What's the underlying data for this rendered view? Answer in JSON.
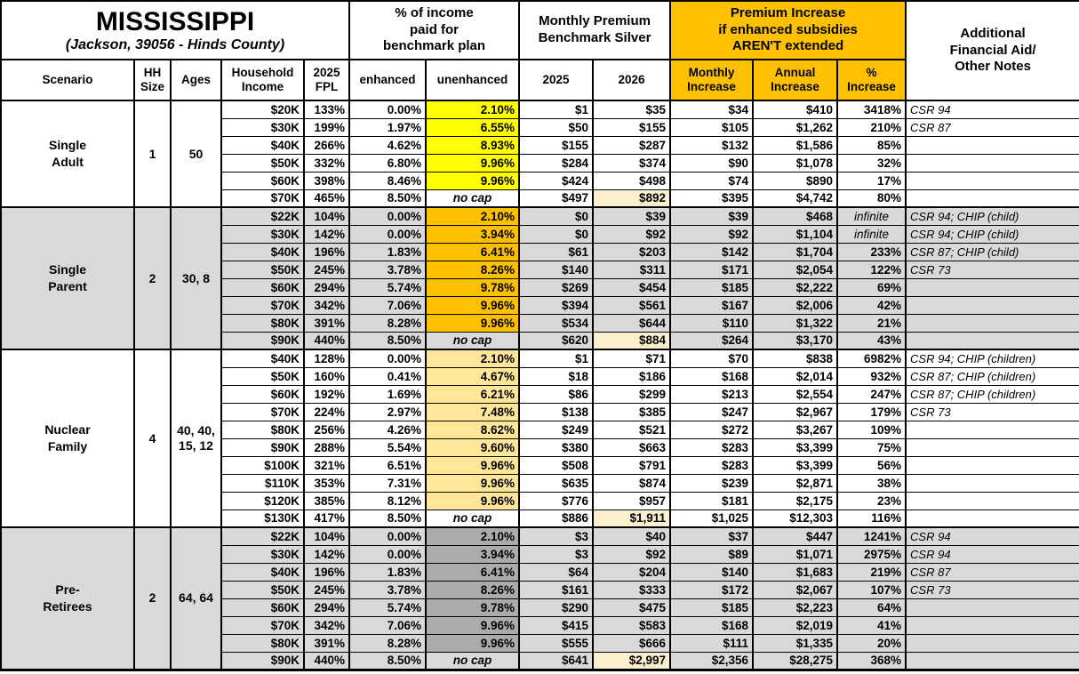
{
  "colors": {
    "header_orange": "#FFC000",
    "single_adult_unenhanced": "#FFFF00",
    "single_parent_unenhanced": "#FFC000",
    "nuclear_family_unenhanced": "#FFE699",
    "pre_retirees_unenhanced": "#ABABAB",
    "gray_section_bg": "#D9D9D9",
    "premium_2026_highlight": "#FCEFCD"
  },
  "chart_data": {
    "type": "table",
    "title": "MISSISSIPPI",
    "subtitle": "(Jackson, 39056 - Hinds County)",
    "groups": {
      "pct_income": "% of income\npaid for\nbenchmark plan",
      "premium": "Monthly Premium\nBenchmark Silver",
      "increase": "Premium Increase\nif enhanced subsidies\nAREN'T extended",
      "notes": "Additional\nFinancial Aid/\nOther Notes"
    },
    "columns": {
      "scenario": "Scenario",
      "hh_size": "HH\nSize",
      "ages": "Ages",
      "income": "Household\nIncome",
      "fpl": "2025\nFPL",
      "enhanced": "enhanced",
      "unenhanced": "unenhanced",
      "y2025": "2025",
      "y2026": "2026",
      "monthly": "Monthly\nIncrease",
      "annual": "Annual\nIncrease",
      "pct": "%\nIncrease"
    },
    "sections": [
      {
        "scenario": "Single\nAdult",
        "hh_size": "1",
        "ages": "50",
        "shade": "white",
        "unenhanced_color": "#FFFF00",
        "rows": [
          {
            "income": "$20K",
            "fpl": "133%",
            "enhanced": "0.00%",
            "unenhanced": "2.10%",
            "p2025": "$1",
            "p2026": "$35",
            "monthly": "$34",
            "annual": "$410",
            "pct": "3418%",
            "notes": "CSR 94"
          },
          {
            "income": "$30K",
            "fpl": "199%",
            "enhanced": "1.97%",
            "unenhanced": "6.55%",
            "p2025": "$50",
            "p2026": "$155",
            "monthly": "$105",
            "annual": "$1,262",
            "pct": "210%",
            "notes": "CSR 87"
          },
          {
            "income": "$40K",
            "fpl": "266%",
            "enhanced": "4.62%",
            "unenhanced": "8.93%",
            "p2025": "$155",
            "p2026": "$287",
            "monthly": "$132",
            "annual": "$1,586",
            "pct": "85%",
            "notes": ""
          },
          {
            "income": "$50K",
            "fpl": "332%",
            "enhanced": "6.80%",
            "unenhanced": "9.96%",
            "p2025": "$284",
            "p2026": "$374",
            "monthly": "$90",
            "annual": "$1,078",
            "pct": "32%",
            "notes": ""
          },
          {
            "income": "$60K",
            "fpl": "398%",
            "enhanced": "8.46%",
            "unenhanced": "9.96%",
            "p2025": "$424",
            "p2026": "$498",
            "monthly": "$74",
            "annual": "$890",
            "pct": "17%",
            "notes": ""
          },
          {
            "income": "$70K",
            "fpl": "465%",
            "enhanced": "8.50%",
            "unenhanced": "no cap",
            "p2025": "$497",
            "p2026": "$892",
            "p2026_highlight": true,
            "monthly": "$395",
            "annual": "$4,742",
            "pct": "80%",
            "notes": ""
          }
        ]
      },
      {
        "scenario": "Single\nParent",
        "hh_size": "2",
        "ages": "30, 8",
        "shade": "gray",
        "unenhanced_color": "#FFC000",
        "rows": [
          {
            "income": "$22K",
            "fpl": "104%",
            "enhanced": "0.00%",
            "unenhanced": "2.10%",
            "p2025": "$0",
            "p2026": "$39",
            "monthly": "$39",
            "annual": "$468",
            "pct": "infinite",
            "notes": "CSR 94; CHIP (child)"
          },
          {
            "income": "$30K",
            "fpl": "142%",
            "enhanced": "0.00%",
            "unenhanced": "3.94%",
            "p2025": "$0",
            "p2026": "$92",
            "monthly": "$92",
            "annual": "$1,104",
            "pct": "infinite",
            "notes": "CSR 94; CHIP (child)"
          },
          {
            "income": "$40K",
            "fpl": "196%",
            "enhanced": "1.83%",
            "unenhanced": "6.41%",
            "p2025": "$61",
            "p2026": "$203",
            "monthly": "$142",
            "annual": "$1,704",
            "pct": "233%",
            "notes": "CSR 87; CHIP (child)"
          },
          {
            "income": "$50K",
            "fpl": "245%",
            "enhanced": "3.78%",
            "unenhanced": "8.26%",
            "p2025": "$140",
            "p2026": "$311",
            "monthly": "$171",
            "annual": "$2,054",
            "pct": "122%",
            "notes": "CSR 73"
          },
          {
            "income": "$60K",
            "fpl": "294%",
            "enhanced": "5.74%",
            "unenhanced": "9.78%",
            "p2025": "$269",
            "p2026": "$454",
            "monthly": "$185",
            "annual": "$2,222",
            "pct": "69%",
            "notes": ""
          },
          {
            "income": "$70K",
            "fpl": "342%",
            "enhanced": "7.06%",
            "unenhanced": "9.96%",
            "p2025": "$394",
            "p2026": "$561",
            "monthly": "$167",
            "annual": "$2,006",
            "pct": "42%",
            "notes": ""
          },
          {
            "income": "$80K",
            "fpl": "391%",
            "enhanced": "8.28%",
            "unenhanced": "9.96%",
            "p2025": "$534",
            "p2026": "$644",
            "monthly": "$110",
            "annual": "$1,322",
            "pct": "21%",
            "notes": ""
          },
          {
            "income": "$90K",
            "fpl": "440%",
            "enhanced": "8.50%",
            "unenhanced": "no cap",
            "p2025": "$620",
            "p2026": "$884",
            "p2026_highlight": true,
            "monthly": "$264",
            "annual": "$3,170",
            "pct": "43%",
            "notes": ""
          }
        ]
      },
      {
        "scenario": "Nuclear\nFamily",
        "hh_size": "4",
        "ages": "40, 40,\n15, 12",
        "shade": "white",
        "unenhanced_color": "#FFE699",
        "rows": [
          {
            "income": "$40K",
            "fpl": "128%",
            "enhanced": "0.00%",
            "unenhanced": "2.10%",
            "p2025": "$1",
            "p2026": "$71",
            "monthly": "$70",
            "annual": "$838",
            "pct": "6982%",
            "notes": "CSR 94; CHIP (children)"
          },
          {
            "income": "$50K",
            "fpl": "160%",
            "enhanced": "0.41%",
            "unenhanced": "4.67%",
            "p2025": "$18",
            "p2026": "$186",
            "monthly": "$168",
            "annual": "$2,014",
            "pct": "932%",
            "notes": "CSR 87; CHIP (children)"
          },
          {
            "income": "$60K",
            "fpl": "192%",
            "enhanced": "1.69%",
            "unenhanced": "6.21%",
            "p2025": "$86",
            "p2026": "$299",
            "monthly": "$213",
            "annual": "$2,554",
            "pct": "247%",
            "notes": "CSR 87; CHIP (children)"
          },
          {
            "income": "$70K",
            "fpl": "224%",
            "enhanced": "2.97%",
            "unenhanced": "7.48%",
            "p2025": "$138",
            "p2026": "$385",
            "monthly": "$247",
            "annual": "$2,967",
            "pct": "179%",
            "notes": "CSR 73"
          },
          {
            "income": "$80K",
            "fpl": "256%",
            "enhanced": "4.26%",
            "unenhanced": "8.62%",
            "p2025": "$249",
            "p2026": "$521",
            "monthly": "$272",
            "annual": "$3,267",
            "pct": "109%",
            "notes": ""
          },
          {
            "income": "$90K",
            "fpl": "288%",
            "enhanced": "5.54%",
            "unenhanced": "9.60%",
            "p2025": "$380",
            "p2026": "$663",
            "monthly": "$283",
            "annual": "$3,399",
            "pct": "75%",
            "notes": ""
          },
          {
            "income": "$100K",
            "fpl": "321%",
            "enhanced": "6.51%",
            "unenhanced": "9.96%",
            "p2025": "$508",
            "p2026": "$791",
            "monthly": "$283",
            "annual": "$3,399",
            "pct": "56%",
            "notes": ""
          },
          {
            "income": "$110K",
            "fpl": "353%",
            "enhanced": "7.31%",
            "unenhanced": "9.96%",
            "p2025": "$635",
            "p2026": "$874",
            "monthly": "$239",
            "annual": "$2,871",
            "pct": "38%",
            "notes": ""
          },
          {
            "income": "$120K",
            "fpl": "385%",
            "enhanced": "8.12%",
            "unenhanced": "9.96%",
            "p2025": "$776",
            "p2026": "$957",
            "monthly": "$181",
            "annual": "$2,175",
            "pct": "23%",
            "notes": ""
          },
          {
            "income": "$130K",
            "fpl": "417%",
            "enhanced": "8.50%",
            "unenhanced": "no cap",
            "p2025": "$886",
            "p2026": "$1,911",
            "p2026_highlight": true,
            "monthly": "$1,025",
            "annual": "$12,303",
            "pct": "116%",
            "notes": ""
          }
        ]
      },
      {
        "scenario": "Pre-\nRetirees",
        "hh_size": "2",
        "ages": "64, 64",
        "shade": "gray",
        "unenhanced_color": "#ABABAB",
        "rows": [
          {
            "income": "$22K",
            "fpl": "104%",
            "enhanced": "0.00%",
            "unenhanced": "2.10%",
            "p2025": "$3",
            "p2026": "$40",
            "monthly": "$37",
            "annual": "$447",
            "pct": "1241%",
            "notes": "CSR 94"
          },
          {
            "income": "$30K",
            "fpl": "142%",
            "enhanced": "0.00%",
            "unenhanced": "3.94%",
            "p2025": "$3",
            "p2026": "$92",
            "monthly": "$89",
            "annual": "$1,071",
            "pct": "2975%",
            "notes": "CSR 94"
          },
          {
            "income": "$40K",
            "fpl": "196%",
            "enhanced": "1.83%",
            "unenhanced": "6.41%",
            "p2025": "$64",
            "p2026": "$204",
            "monthly": "$140",
            "annual": "$1,683",
            "pct": "219%",
            "notes": "CSR 87"
          },
          {
            "income": "$50K",
            "fpl": "245%",
            "enhanced": "3.78%",
            "unenhanced": "8.26%",
            "p2025": "$161",
            "p2026": "$333",
            "monthly": "$172",
            "annual": "$2,067",
            "pct": "107%",
            "notes": "CSR 73"
          },
          {
            "income": "$60K",
            "fpl": "294%",
            "enhanced": "5.74%",
            "unenhanced": "9.78%",
            "p2025": "$290",
            "p2026": "$475",
            "monthly": "$185",
            "annual": "$2,223",
            "pct": "64%",
            "notes": ""
          },
          {
            "income": "$70K",
            "fpl": "342%",
            "enhanced": "7.06%",
            "unenhanced": "9.96%",
            "p2025": "$415",
            "p2026": "$583",
            "monthly": "$168",
            "annual": "$2,019",
            "pct": "41%",
            "notes": ""
          },
          {
            "income": "$80K",
            "fpl": "391%",
            "enhanced": "8.28%",
            "unenhanced": "9.96%",
            "p2025": "$555",
            "p2026": "$666",
            "monthly": "$111",
            "annual": "$1,335",
            "pct": "20%",
            "notes": ""
          },
          {
            "income": "$90K",
            "fpl": "440%",
            "enhanced": "8.50%",
            "unenhanced": "no cap",
            "p2025": "$641",
            "p2026": "$2,997",
            "p2026_highlight": true,
            "monthly": "$2,356",
            "annual": "$28,275",
            "pct": "368%",
            "notes": ""
          }
        ]
      }
    ]
  }
}
